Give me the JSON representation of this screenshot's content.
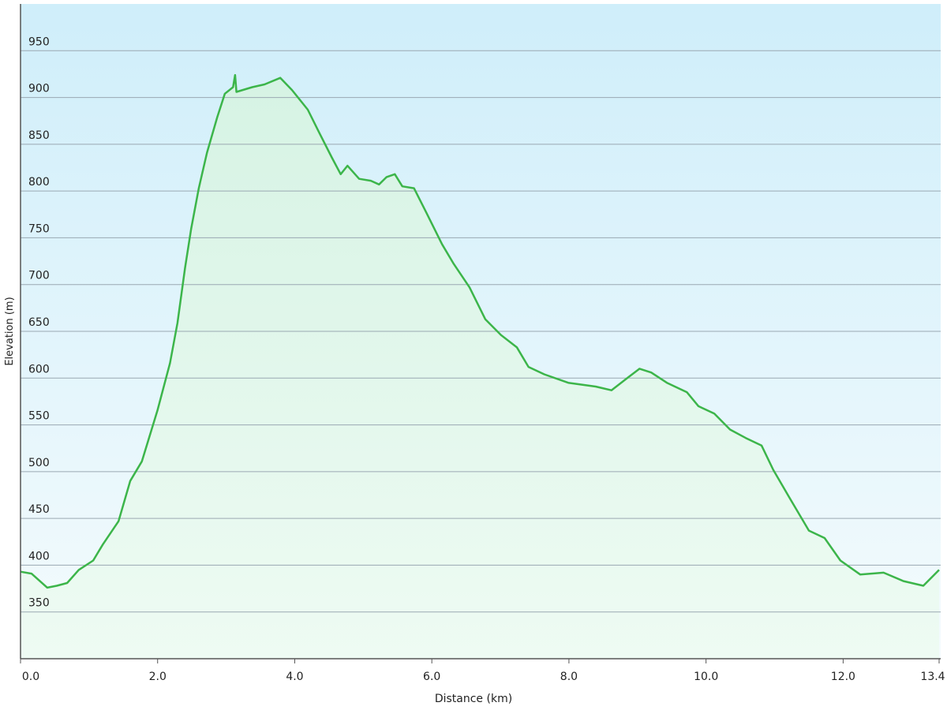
{
  "chart_data": {
    "type": "area",
    "x_label": "Distance  (km)",
    "y_label": "Elevation (m)",
    "xlim": [
      0,
      13.4
    ],
    "ylim": [
      300,
      1000
    ],
    "xticks": [
      {
        "value": 0,
        "label": "0.0"
      },
      {
        "value": 2,
        "label": "2.0"
      },
      {
        "value": 4,
        "label": "4.0"
      },
      {
        "value": 6,
        "label": "6.0"
      },
      {
        "value": 8,
        "label": "8.0"
      },
      {
        "value": 10,
        "label": "10.0"
      },
      {
        "value": 12,
        "label": "12.0"
      },
      13.4
    ],
    "yticks": [
      350,
      400,
      450,
      500,
      550,
      600,
      650,
      700,
      750,
      800,
      850,
      900,
      950
    ],
    "grid": true,
    "series": [
      {
        "color": "#3cb54a",
        "x": [
          0,
          0.16,
          0.39,
          0.53,
          0.68,
          0.85,
          1.06,
          1.2,
          1.43,
          1.6,
          1.77,
          2.0,
          2.18,
          2.29,
          2.4,
          2.49,
          2.6,
          2.72,
          2.87,
          2.98,
          3.1,
          3.13,
          3.15,
          3.38,
          3.56,
          3.79,
          3.96,
          4.19,
          4.36,
          4.54,
          4.67,
          4.77,
          4.94,
          5.11,
          5.23,
          5.34,
          5.46,
          5.57,
          5.74,
          5.92,
          6.15,
          6.32,
          6.55,
          6.78,
          7.01,
          7.24,
          7.41,
          7.64,
          7.99,
          8.39,
          8.62,
          8.85,
          9.03,
          9.2,
          9.43,
          9.72,
          9.89,
          10.12,
          10.35,
          10.58,
          10.81,
          10.98,
          11.21,
          11.5,
          11.73,
          11.96,
          12.25,
          12.59,
          12.88,
          13.17,
          13.4
        ],
        "values": [
          393,
          391,
          376,
          378,
          381,
          395,
          405,
          422,
          447,
          490,
          511,
          566,
          616,
          659,
          718,
          760,
          803,
          841,
          879,
          904,
          911,
          924,
          906,
          911,
          914,
          921,
          908,
          887,
          862,
          836,
          818,
          827,
          813,
          811,
          807,
          815,
          818,
          805,
          803,
          777,
          743,
          722,
          697,
          663,
          646,
          633,
          612,
          604,
          595,
          591,
          587,
          600,
          610,
          606,
          595,
          585,
          570,
          562,
          545,
          536,
          528,
          502,
          473,
          437,
          429,
          405,
          390,
          392,
          383,
          378,
          395
        ]
      }
    ]
  }
}
